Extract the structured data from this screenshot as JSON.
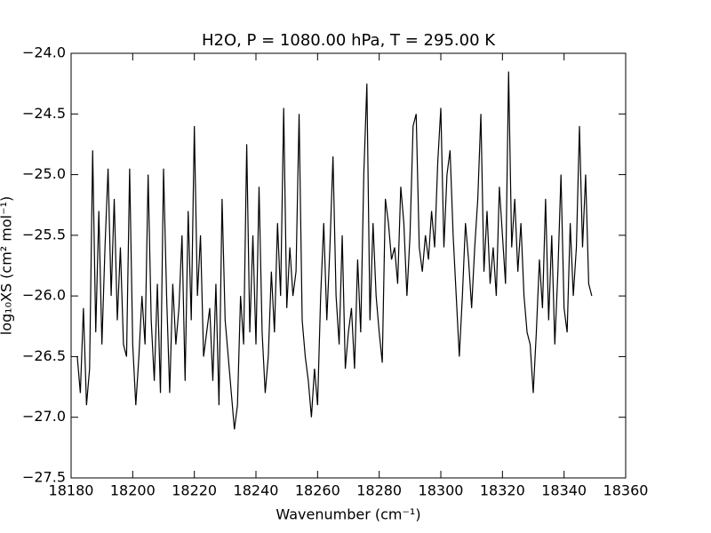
{
  "chart_data": {
    "type": "line",
    "title": "H2O, P = 1080.00 hPa, T = 295.00 K",
    "x_label": "Wavenumber (cm⁻¹)",
    "y_label": "log₁₀XS (cm² mol⁻¹)",
    "xlim": [
      18180,
      18360
    ],
    "ylim": [
      -27.5,
      -24.0
    ],
    "xticks": [
      18180,
      18200,
      18220,
      18240,
      18260,
      18280,
      18300,
      18320,
      18340,
      18360
    ],
    "yticks": [
      {
        "value": -27.5,
        "label": "−27.5"
      },
      {
        "value": -27.0,
        "label": "−27.0"
      },
      {
        "value": -26.5,
        "label": "−26.5"
      },
      {
        "value": -26.0,
        "label": "−26.0"
      },
      {
        "value": -25.5,
        "label": "−25.5"
      },
      {
        "value": -25.0,
        "label": "−25.0"
      },
      {
        "value": -24.5,
        "label": "−24.5"
      },
      {
        "value": -24.0,
        "label": "−24.0"
      }
    ],
    "grid": false,
    "series": [
      {
        "color": "#000000",
        "x": [
          18182,
          18183,
          18184,
          18185,
          18186,
          18187,
          18188,
          18189,
          18190,
          18191,
          18192,
          18193,
          18194,
          18195,
          18196,
          18197,
          18198,
          18199,
          18200,
          18201,
          18202,
          18203,
          18204,
          18205,
          18206,
          18207,
          18208,
          18209,
          18210,
          18211,
          18212,
          18213,
          18214,
          18215,
          18216,
          18217,
          18218,
          18219,
          18220,
          18221,
          18222,
          18223,
          18224,
          18225,
          18226,
          18227,
          18228,
          18229,
          18230,
          18231,
          18232,
          18233,
          18234,
          18235,
          18236,
          18237,
          18238,
          18239,
          18240,
          18241,
          18242,
          18243,
          18244,
          18245,
          18246,
          18247,
          18248,
          18249,
          18250,
          18251,
          18252,
          18253,
          18254,
          18255,
          18256,
          18257,
          18258,
          18259,
          18260,
          18261,
          18262,
          18263,
          18264,
          18265,
          18266,
          18267,
          18268,
          18269,
          18270,
          18271,
          18272,
          18273,
          18274,
          18275,
          18276,
          18277,
          18278,
          18279,
          18280,
          18281,
          18282,
          18283,
          18284,
          18285,
          18286,
          18287,
          18288,
          18289,
          18290,
          18291,
          18292,
          18293,
          18294,
          18295,
          18296,
          18297,
          18298,
          18299,
          18300,
          18301,
          18302,
          18303,
          18304,
          18305,
          18306,
          18307,
          18308,
          18309,
          18310,
          18311,
          18312,
          18313,
          18314,
          18315,
          18316,
          18317,
          18318,
          18319,
          18320,
          18321,
          18322,
          18323,
          18324,
          18325,
          18326,
          18327,
          18328,
          18329,
          18330,
          18331,
          18332,
          18333,
          18334,
          18335,
          18336,
          18337,
          18338,
          18339,
          18340,
          18341,
          18342,
          18343,
          18344,
          18345,
          18346,
          18347,
          18348,
          18349
        ],
        "values": [
          -26.5,
          -26.8,
          -26.1,
          -26.9,
          -26.6,
          -24.8,
          -26.3,
          -25.3,
          -26.4,
          -25.6,
          -24.95,
          -26.0,
          -25.2,
          -26.2,
          -25.6,
          -26.4,
          -26.5,
          -24.95,
          -26.4,
          -26.9,
          -26.5,
          -26.0,
          -26.4,
          -25.0,
          -26.2,
          -26.7,
          -25.9,
          -26.8,
          -24.95,
          -26.0,
          -26.8,
          -25.9,
          -26.4,
          -26.1,
          -25.5,
          -26.7,
          -25.3,
          -26.2,
          -24.6,
          -26.0,
          -25.5,
          -26.5,
          -26.3,
          -26.1,
          -26.7,
          -25.9,
          -26.9,
          -25.2,
          -26.2,
          -26.5,
          -26.8,
          -27.1,
          -26.9,
          -26.0,
          -26.4,
          -24.75,
          -26.3,
          -25.5,
          -26.4,
          -25.1,
          -26.3,
          -26.8,
          -26.5,
          -25.8,
          -26.3,
          -25.4,
          -26.0,
          -24.45,
          -26.1,
          -25.6,
          -26.0,
          -25.8,
          -24.5,
          -26.2,
          -26.5,
          -26.7,
          -27.0,
          -26.6,
          -26.9,
          -26.0,
          -25.4,
          -26.2,
          -25.6,
          -24.85,
          -26.0,
          -26.4,
          -25.5,
          -26.6,
          -26.3,
          -26.1,
          -26.6,
          -25.7,
          -26.3,
          -25.0,
          -24.25,
          -26.2,
          -25.4,
          -26.0,
          -26.3,
          -26.55,
          -25.2,
          -25.4,
          -25.7,
          -25.6,
          -25.9,
          -25.1,
          -25.4,
          -26.0,
          -25.5,
          -24.6,
          -24.5,
          -25.6,
          -25.8,
          -25.5,
          -25.7,
          -25.3,
          -25.6,
          -24.9,
          -24.45,
          -25.6,
          -25.0,
          -24.8,
          -25.5,
          -26.0,
          -26.5,
          -26.0,
          -25.4,
          -25.7,
          -26.1,
          -25.6,
          -25.2,
          -24.5,
          -25.8,
          -25.3,
          -25.9,
          -25.6,
          -26.0,
          -25.1,
          -25.5,
          -25.9,
          -24.15,
          -25.6,
          -25.2,
          -25.8,
          -25.4,
          -26.0,
          -26.3,
          -26.4,
          -26.8,
          -26.3,
          -25.7,
          -26.1,
          -25.2,
          -26.2,
          -25.5,
          -26.4,
          -25.8,
          -25.0,
          -26.1,
          -26.3,
          -25.4,
          -26.0,
          -25.6,
          -24.6,
          -25.6,
          -25.0,
          -25.9,
          -26.0
        ]
      }
    ]
  }
}
